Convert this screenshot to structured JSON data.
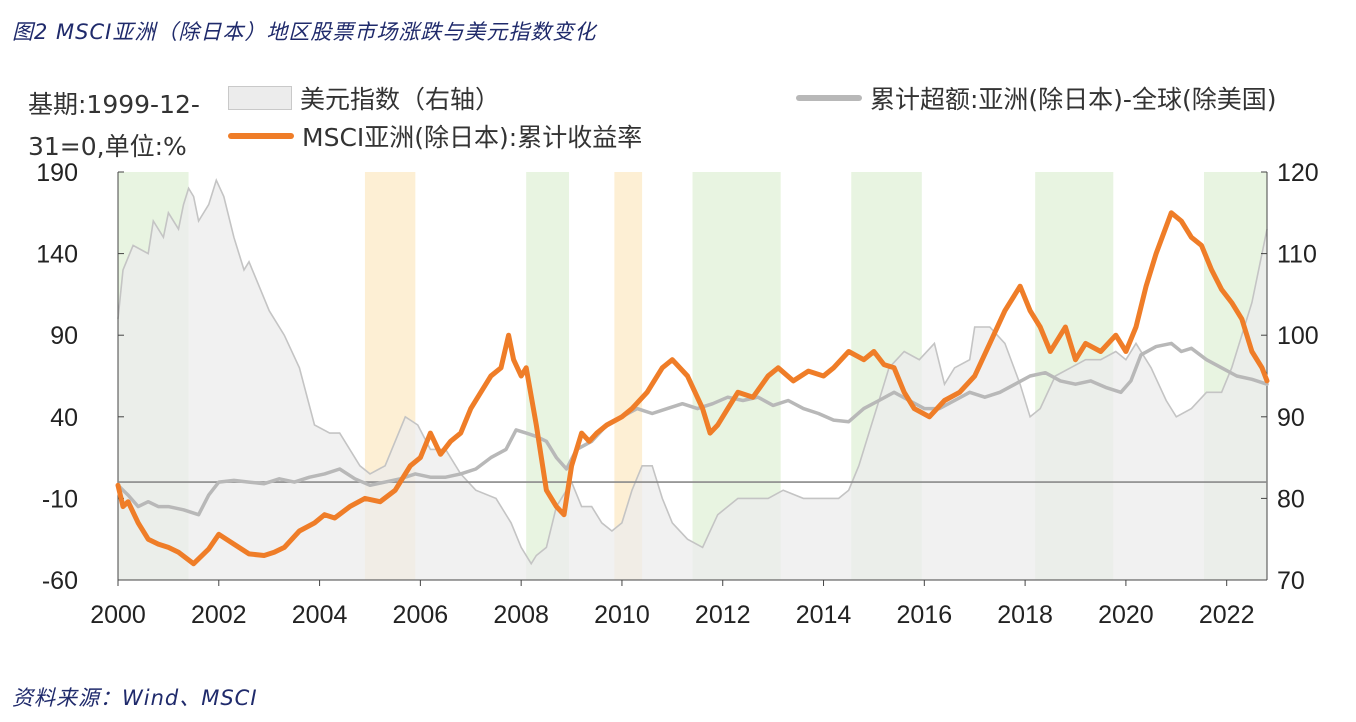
{
  "title": "图2 MSCI亚洲（除日本）地区股票市场涨跌与美元指数变化",
  "source": "资料来源：Wind、MSCI",
  "base_note": "基期:1999-12-31=0,单位:%",
  "colors": {
    "orange": "#ef7d28",
    "gray_line": "#b8b8b8",
    "area_fill": "#ececec",
    "area_stroke": "#c4c4c4",
    "green_band": "#e4f2dc",
    "yellow_band": "#fdeccc",
    "zero_line": "#8a8a8a"
  },
  "chart_data": {
    "type": "line",
    "title": "图2 MSCI亚洲（除日本）地区股票市场涨跌与美元指数变化",
    "xlabel": "",
    "ylabel": "基期:1999-12-31=0,单位:%",
    "ylim": [
      -60,
      190
    ],
    "y2lim": [
      70,
      120
    ],
    "xlim": [
      2000,
      2022.8
    ],
    "x_ticks": [
      "2000",
      "2002",
      "2004",
      "2006",
      "2008",
      "2010",
      "2012",
      "2014",
      "2016",
      "2018",
      "2020",
      "2022"
    ],
    "x_tick_values": [
      2000,
      2002,
      2004,
      2006,
      2008,
      2010,
      2012,
      2014,
      2016,
      2018,
      2020,
      2022
    ],
    "y_ticks": [
      "190",
      "140",
      "90",
      "40",
      "-10",
      "-60"
    ],
    "y_tick_values": [
      190,
      140,
      90,
      40,
      -10,
      -60
    ],
    "y2_ticks": [
      "120",
      "110",
      "100",
      "90",
      "80",
      "70"
    ],
    "y2_tick_values": [
      120,
      110,
      100,
      90,
      80,
      70
    ],
    "bands": [
      {
        "start": 2000.0,
        "end": 2001.4,
        "color": "green"
      },
      {
        "start": 2004.9,
        "end": 2005.9,
        "color": "yellow"
      },
      {
        "start": 2008.1,
        "end": 2008.95,
        "color": "green"
      },
      {
        "start": 2009.85,
        "end": 2010.4,
        "color": "yellow"
      },
      {
        "start": 2011.4,
        "end": 2013.15,
        "color": "green"
      },
      {
        "start": 2014.55,
        "end": 2015.95,
        "color": "green"
      },
      {
        "start": 2018.2,
        "end": 2019.75,
        "color": "green"
      },
      {
        "start": 2021.55,
        "end": 2022.8,
        "color": "green"
      }
    ],
    "series": [
      {
        "name": "美元指数（右轴）",
        "axis": "right",
        "style": "area",
        "x": [
          2000.0,
          2000.1,
          2000.3,
          2000.6,
          2000.7,
          2000.9,
          2001.0,
          2001.2,
          2001.3,
          2001.4,
          2001.5,
          2001.6,
          2001.8,
          2001.95,
          2002.1,
          2002.3,
          2002.5,
          2002.6,
          2002.8,
          2003.0,
          2003.3,
          2003.6,
          2003.9,
          2004.2,
          2004.4,
          2004.6,
          2004.8,
          2005.0,
          2005.3,
          2005.5,
          2005.7,
          2005.95,
          2006.2,
          2006.5,
          2006.8,
          2007.1,
          2007.5,
          2007.8,
          2008.0,
          2008.2,
          2008.3,
          2008.5,
          2008.7,
          2008.9,
          2009.0,
          2009.2,
          2009.4,
          2009.6,
          2009.8,
          2010.0,
          2010.2,
          2010.4,
          2010.6,
          2010.8,
          2011.0,
          2011.3,
          2011.6,
          2011.9,
          2012.3,
          2012.6,
          2012.9,
          2013.2,
          2013.6,
          2014.0,
          2014.3,
          2014.5,
          2014.7,
          2014.9,
          2015.1,
          2015.3,
          2015.6,
          2015.9,
          2016.2,
          2016.4,
          2016.6,
          2016.9,
          2017.0,
          2017.3,
          2017.6,
          2017.9,
          2018.1,
          2018.3,
          2018.6,
          2018.9,
          2019.2,
          2019.5,
          2019.8,
          2020.0,
          2020.2,
          2020.5,
          2020.8,
          2021.0,
          2021.3,
          2021.6,
          2021.9,
          2022.1,
          2022.3,
          2022.5,
          2022.7,
          2022.8
        ],
        "values": [
          102,
          108,
          111,
          110,
          114,
          112,
          115,
          113,
          116,
          118,
          117,
          114,
          116,
          119,
          117,
          112,
          108,
          109,
          106,
          103,
          100,
          96,
          89,
          88,
          88,
          86,
          84,
          83,
          84,
          87,
          90,
          89,
          86,
          86,
          83,
          81,
          80,
          77,
          74,
          72,
          73,
          74,
          79,
          81,
          82,
          79,
          79,
          77,
          76,
          77,
          81,
          84,
          84,
          80,
          77,
          75,
          74,
          78,
          80,
          80,
          80,
          81,
          80,
          80,
          80,
          81,
          84,
          88,
          92,
          96,
          98,
          97,
          99,
          94,
          96,
          97,
          101,
          101,
          99,
          94,
          90,
          91,
          95,
          96,
          97,
          97,
          98,
          97,
          99,
          96,
          92,
          90,
          91,
          93,
          93,
          96,
          100,
          104,
          110,
          113
        ]
      },
      {
        "name": "MSCI亚洲(除日本):累计收益率",
        "axis": "left",
        "style": "line",
        "x": [
          2000.0,
          2000.1,
          2000.2,
          2000.4,
          2000.6,
          2000.8,
          2001.0,
          2001.2,
          2001.5,
          2001.8,
          2002.0,
          2002.3,
          2002.6,
          2002.9,
          2003.1,
          2003.3,
          2003.6,
          2003.9,
          2004.1,
          2004.3,
          2004.6,
          2004.9,
          2005.2,
          2005.5,
          2005.8,
          2006.0,
          2006.2,
          2006.4,
          2006.6,
          2006.8,
          2007.0,
          2007.2,
          2007.4,
          2007.6,
          2007.75,
          2007.85,
          2008.0,
          2008.1,
          2008.3,
          2008.5,
          2008.7,
          2008.85,
          2009.0,
          2009.2,
          2009.35,
          2009.5,
          2009.7,
          2010.0,
          2010.2,
          2010.5,
          2010.8,
          2011.0,
          2011.3,
          2011.6,
          2011.75,
          2011.9,
          2012.1,
          2012.3,
          2012.6,
          2012.9,
          2013.1,
          2013.4,
          2013.7,
          2014.0,
          2014.2,
          2014.5,
          2014.8,
          2015.0,
          2015.2,
          2015.4,
          2015.6,
          2015.8,
          2016.1,
          2016.4,
          2016.7,
          2017.0,
          2017.3,
          2017.6,
          2017.9,
          2018.1,
          2018.3,
          2018.5,
          2018.8,
          2019.0,
          2019.2,
          2019.5,
          2019.8,
          2020.0,
          2020.2,
          2020.4,
          2020.6,
          2020.9,
          2021.1,
          2021.3,
          2021.5,
          2021.7,
          2021.9,
          2022.1,
          2022.3,
          2022.5,
          2022.7,
          2022.8
        ],
        "values": [
          -2,
          -15,
          -12,
          -25,
          -35,
          -38,
          -40,
          -43,
          -50,
          -41,
          -32,
          -38,
          -44,
          -45,
          -43,
          -40,
          -30,
          -25,
          -20,
          -22,
          -15,
          -10,
          -12,
          -5,
          10,
          15,
          30,
          17,
          25,
          30,
          45,
          55,
          65,
          70,
          90,
          75,
          65,
          70,
          35,
          -5,
          -15,
          -20,
          10,
          30,
          25,
          30,
          35,
          40,
          45,
          55,
          70,
          75,
          65,
          45,
          30,
          35,
          45,
          55,
          52,
          65,
          70,
          62,
          68,
          65,
          70,
          80,
          75,
          80,
          72,
          70,
          55,
          45,
          40,
          50,
          55,
          65,
          85,
          105,
          120,
          105,
          95,
          80,
          95,
          75,
          85,
          80,
          90,
          80,
          95,
          120,
          140,
          165,
          160,
          150,
          145,
          130,
          118,
          110,
          100,
          80,
          70,
          62
        ]
      },
      {
        "name": "累计超额:亚洲(除日本)-全球(除美国)",
        "axis": "left",
        "style": "line",
        "x": [
          2000.0,
          2000.2,
          2000.4,
          2000.6,
          2000.8,
          2001.0,
          2001.3,
          2001.6,
          2001.8,
          2002.0,
          2002.3,
          2002.6,
          2002.9,
          2003.2,
          2003.5,
          2003.8,
          2004.1,
          2004.4,
          2004.7,
          2005.0,
          2005.3,
          2005.6,
          2005.9,
          2006.2,
          2006.5,
          2006.8,
          2007.1,
          2007.4,
          2007.7,
          2007.9,
          2008.1,
          2008.3,
          2008.5,
          2008.7,
          2008.9,
          2009.1,
          2009.4,
          2009.7,
          2010.0,
          2010.3,
          2010.6,
          2010.9,
          2011.2,
          2011.5,
          2011.8,
          2012.1,
          2012.4,
          2012.7,
          2013.0,
          2013.3,
          2013.6,
          2013.9,
          2014.2,
          2014.5,
          2014.8,
          2015.1,
          2015.4,
          2015.7,
          2016.0,
          2016.3,
          2016.6,
          2016.9,
          2017.2,
          2017.5,
          2017.8,
          2018.1,
          2018.4,
          2018.7,
          2019.0,
          2019.3,
          2019.6,
          2019.9,
          2020.1,
          2020.3,
          2020.6,
          2020.9,
          2021.1,
          2021.3,
          2021.6,
          2021.9,
          2022.2,
          2022.5,
          2022.8
        ],
        "values": [
          -2,
          -8,
          -15,
          -12,
          -15,
          -15,
          -17,
          -20,
          -8,
          0,
          1,
          0,
          -1,
          2,
          0,
          3,
          5,
          8,
          2,
          -2,
          0,
          2,
          5,
          3,
          3,
          5,
          8,
          15,
          20,
          32,
          30,
          28,
          25,
          15,
          8,
          20,
          25,
          35,
          40,
          45,
          42,
          45,
          48,
          45,
          48,
          52,
          50,
          52,
          47,
          50,
          45,
          42,
          38,
          37,
          45,
          50,
          55,
          50,
          45,
          45,
          50,
          55,
          52,
          55,
          60,
          65,
          67,
          62,
          60,
          62,
          58,
          55,
          62,
          78,
          83,
          85,
          80,
          82,
          75,
          70,
          65,
          63,
          60
        ]
      }
    ],
    "legend": [
      {
        "label": "美元指数（右轴）",
        "style": "area"
      },
      {
        "label": "累计超额:亚洲(除日本)-全球(除美国)",
        "style": "gray"
      },
      {
        "label": "MSCI亚洲(除日本):累计收益率",
        "style": "orange"
      }
    ]
  }
}
